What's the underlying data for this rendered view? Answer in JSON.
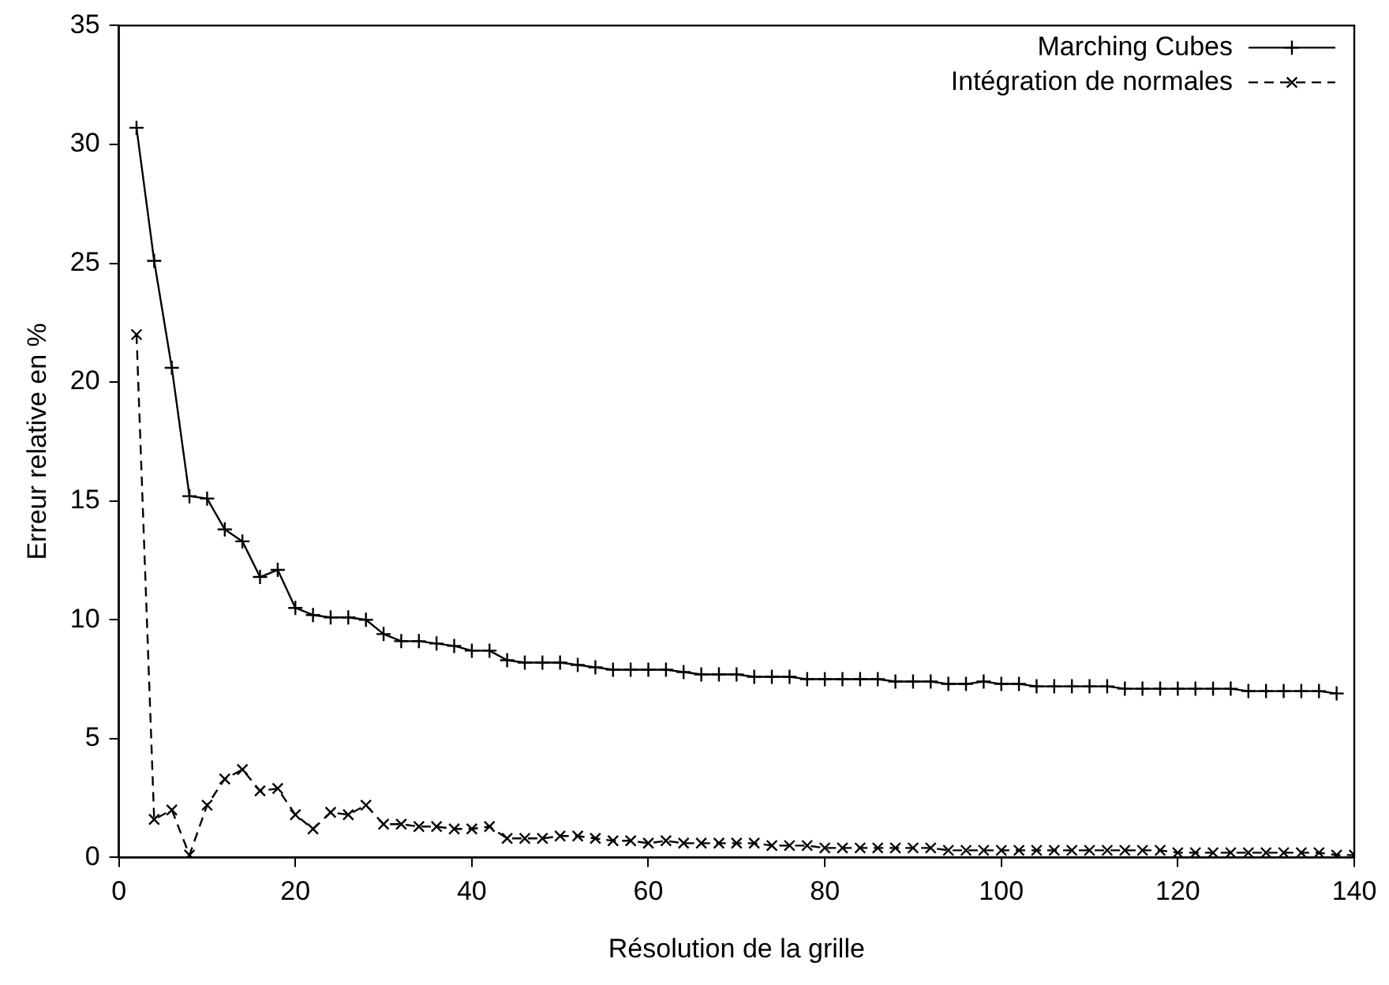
{
  "chart_data": {
    "type": "line",
    "xlabel": "Résolution de la grille",
    "ylabel": "Erreur relative en %",
    "xlim": [
      0,
      140
    ],
    "xticks": [
      0,
      20,
      40,
      60,
      80,
      100,
      120,
      140
    ],
    "ylim": [
      0,
      35
    ],
    "yticks": [
      0,
      5,
      10,
      15,
      20,
      25,
      30,
      35
    ],
    "grid": false,
    "legend": "top right",
    "marker": "cross",
    "series": [
      {
        "name": "Marching Cubes",
        "color": "#000000",
        "line_style": "solid",
        "x": [
          2,
          4,
          6,
          8,
          10,
          12,
          14,
          16,
          18,
          20,
          22,
          24,
          26,
          28,
          30,
          32,
          34,
          36,
          38,
          40,
          42,
          44,
          46,
          48,
          50,
          52,
          54,
          56,
          58,
          60,
          62,
          64,
          66,
          68,
          70,
          72,
          74,
          76,
          78,
          80,
          82,
          84,
          86,
          88,
          90,
          92,
          94,
          96,
          98,
          100,
          102,
          104,
          106,
          108,
          110,
          112,
          114,
          116,
          118,
          120,
          122,
          124,
          126,
          128,
          130,
          132,
          134,
          136,
          138
        ],
        "values": [
          30.7,
          25.1,
          20.6,
          15.2,
          15.1,
          13.8,
          13.3,
          11.8,
          12.1,
          10.5,
          10.2,
          10.1,
          10.1,
          10.0,
          9.4,
          9.1,
          9.1,
          9.0,
          8.9,
          8.7,
          8.7,
          8.3,
          8.2,
          8.2,
          8.2,
          8.1,
          8.0,
          7.9,
          7.9,
          7.9,
          7.9,
          7.8,
          7.7,
          7.7,
          7.7,
          7.6,
          7.6,
          7.6,
          7.5,
          7.5,
          7.5,
          7.5,
          7.5,
          7.4,
          7.4,
          7.4,
          7.3,
          7.3,
          7.4,
          7.3,
          7.3,
          7.2,
          7.2,
          7.2,
          7.2,
          7.2,
          7.1,
          7.1,
          7.1,
          7.1,
          7.1,
          7.1,
          7.1,
          7.0,
          7.0,
          7.0,
          7.0,
          7.0,
          6.9
        ]
      },
      {
        "name": "Intégration de normales",
        "color": "#000000",
        "line_style": "dashed",
        "x": [
          2,
          4,
          6,
          8,
          10,
          12,
          14,
          16,
          18,
          20,
          22,
          24,
          26,
          28,
          30,
          32,
          34,
          36,
          38,
          40,
          42,
          44,
          46,
          48,
          50,
          52,
          54,
          56,
          58,
          60,
          62,
          64,
          66,
          68,
          70,
          72,
          74,
          76,
          78,
          80,
          82,
          84,
          86,
          88,
          90,
          92,
          94,
          96,
          98,
          100,
          102,
          104,
          106,
          108,
          110,
          112,
          114,
          116,
          118,
          120,
          122,
          124,
          126,
          128,
          130,
          132,
          134,
          136,
          138,
          140
        ],
        "values": [
          22.0,
          1.6,
          2.0,
          0.1,
          2.2,
          3.3,
          3.7,
          2.8,
          2.9,
          1.8,
          1.2,
          1.9,
          1.8,
          2.2,
          1.4,
          1.4,
          1.3,
          1.3,
          1.2,
          1.2,
          1.3,
          0.8,
          0.8,
          0.8,
          0.9,
          0.9,
          0.8,
          0.7,
          0.7,
          0.6,
          0.7,
          0.6,
          0.6,
          0.6,
          0.6,
          0.6,
          0.5,
          0.5,
          0.5,
          0.4,
          0.4,
          0.4,
          0.4,
          0.4,
          0.4,
          0.4,
          0.3,
          0.3,
          0.3,
          0.3,
          0.3,
          0.3,
          0.3,
          0.3,
          0.3,
          0.3,
          0.3,
          0.3,
          0.3,
          0.2,
          0.2,
          0.2,
          0.2,
          0.2,
          0.2,
          0.2,
          0.2,
          0.2,
          0.1,
          0.1
        ]
      }
    ]
  }
}
